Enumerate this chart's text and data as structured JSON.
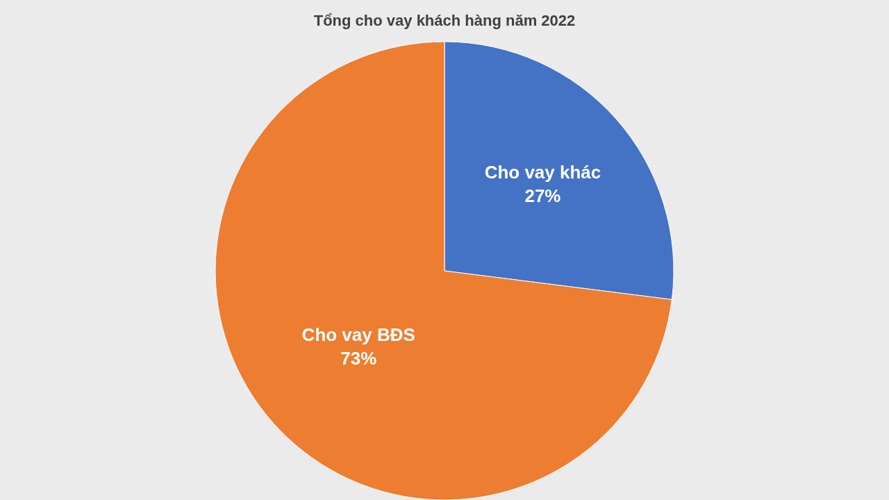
{
  "chart_data": {
    "type": "pie",
    "title": "Tổng cho vay khách hàng năm 2022",
    "categories": [
      "Cho vay khác",
      "Cho vay BĐS"
    ],
    "values": [
      27,
      73
    ],
    "value_labels": [
      "27%",
      "73%"
    ],
    "colors": [
      "#4472c4",
      "#ed7d31"
    ],
    "legend": false
  }
}
